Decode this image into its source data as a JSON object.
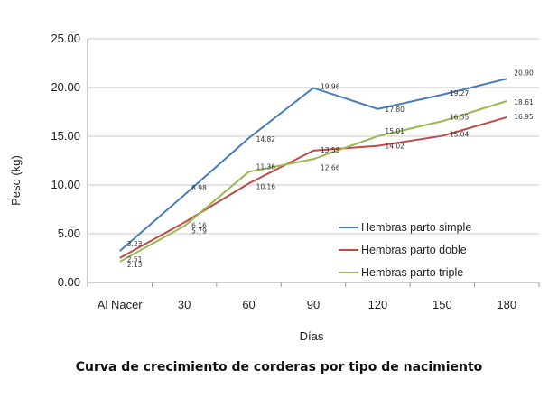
{
  "chart_data": {
    "type": "line",
    "title": "Curva de crecimiento de corderas por tipo de nacimiento",
    "xlabel": "Días",
    "ylabel": "Peso (kg)",
    "categories": [
      "Al Nacer",
      "30",
      "60",
      "90",
      "120",
      "150",
      "180"
    ],
    "ylim": [
      0,
      25
    ],
    "yticks": [
      "0.00",
      "5.00",
      "10.00",
      "15.00",
      "20.00",
      "25.00"
    ],
    "grid": "horizontal",
    "legend_position": "right",
    "series": [
      {
        "name": "Hembras parto simple",
        "color": "#4a7ebb",
        "values": [
          3.23,
          8.98,
          14.82,
          19.96,
          17.8,
          19.27,
          20.9
        ],
        "labels": [
          "3.23",
          "8.98",
          "14.82",
          "19.96",
          "17.80",
          "19.27",
          "20.90"
        ]
      },
      {
        "name": "Hembras parto doble",
        "color": "#be4b48",
        "values": [
          2.51,
          6.16,
          10.16,
          13.53,
          14.02,
          15.04,
          16.95
        ],
        "labels": [
          "2.51",
          "6.16",
          "10.16",
          "13.53",
          "14.02",
          "15.04",
          "16.95"
        ]
      },
      {
        "name": "Hembras parto triple",
        "color": "#98b954",
        "values": [
          2.13,
          5.79,
          11.36,
          12.66,
          15.01,
          16.55,
          18.61
        ],
        "labels": [
          "2.13",
          "5.79",
          "11.36",
          "12.66",
          "15.01",
          "16.55",
          "18.61"
        ]
      }
    ]
  }
}
